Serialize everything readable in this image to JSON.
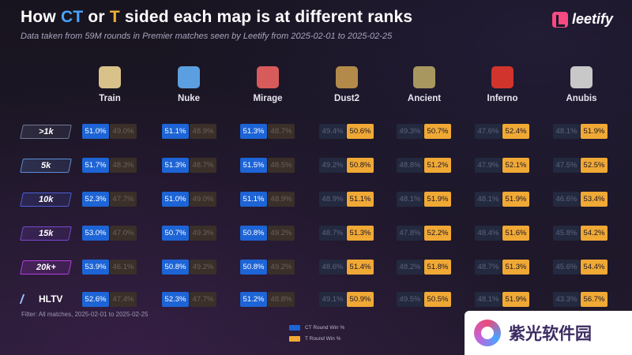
{
  "header": {
    "title_pre": "How ",
    "title_ct": "CT",
    "title_mid": " or ",
    "title_t": "T",
    "title_post": " sided each map is at different ranks",
    "subtitle": "Data taken from 59M rounds in Premier matches seen by Leetify from 2025-02-01 to 2025-02-25",
    "brand": "leetify"
  },
  "filter_text": "Filter: All matches, 2025-02-01 to 2025-02-25",
  "legend": {
    "ct_label": "CT Round Win %",
    "t_label": "T Round Win %"
  },
  "colors": {
    "ct": "#1d64d6",
    "t": "#f0a935"
  },
  "watermark": "紫光软件园",
  "chart_data": {
    "type": "table",
    "title": "How CT or T sided each map is at different ranks",
    "maps": [
      "Train",
      "Nuke",
      "Mirage",
      "Dust2",
      "Ancient",
      "Inferno",
      "Anubis"
    ],
    "ranks": [
      ">1k",
      "5k",
      "10k",
      "15k",
      "20k+",
      "HLTV"
    ],
    "rank_colors": [
      "#6e7a96",
      "#5a8fd8",
      "#4b5fd8",
      "#7a48cf",
      "#b33ee0",
      "#ffffff"
    ],
    "rows": [
      {
        "rank": ">1k",
        "ct": [
          "51.0%",
          "51.1%",
          "51.3%",
          "49.4%",
          "49.3%",
          "47.6%",
          "48.1%"
        ],
        "t": [
          "49.0%",
          "48.9%",
          "48.7%",
          "50.6%",
          "50.7%",
          "52.4%",
          "51.9%"
        ]
      },
      {
        "rank": "5k",
        "ct": [
          "51.7%",
          "51.3%",
          "51.5%",
          "49.2%",
          "48.8%",
          "47.9%",
          "47.5%"
        ],
        "t": [
          "48.3%",
          "48.7%",
          "48.5%",
          "50.8%",
          "51.2%",
          "52.1%",
          "52.5%"
        ]
      },
      {
        "rank": "10k",
        "ct": [
          "52.3%",
          "51.0%",
          "51.1%",
          "48.9%",
          "48.1%",
          "48.1%",
          "46.6%"
        ],
        "t": [
          "47.7%",
          "49.0%",
          "48.9%",
          "51.1%",
          "51.9%",
          "51.9%",
          "53.4%"
        ]
      },
      {
        "rank": "15k",
        "ct": [
          "53.0%",
          "50.7%",
          "50.8%",
          "48.7%",
          "47.8%",
          "48.4%",
          "45.8%"
        ],
        "t": [
          "47.0%",
          "49.3%",
          "49.2%",
          "51.3%",
          "52.2%",
          "51.6%",
          "54.2%"
        ]
      },
      {
        "rank": "20k+",
        "ct": [
          "53.9%",
          "50.8%",
          "50.8%",
          "48.6%",
          "48.2%",
          "48.7%",
          "45.6%"
        ],
        "t": [
          "46.1%",
          "49.2%",
          "49.2%",
          "51.4%",
          "51.8%",
          "51.3%",
          "54.4%"
        ]
      },
      {
        "rank": "HLTV",
        "ct": [
          "52.6%",
          "52.3%",
          "51.2%",
          "49.1%",
          "49.5%",
          "48.1%",
          "43.3%"
        ],
        "t": [
          "47.4%",
          "47.7%",
          "48.8%",
          "50.9%",
          "50.5%",
          "51.9%",
          "56.7%"
        ]
      }
    ],
    "map_icon_colors": [
      "#d8c28a",
      "#5b9fe0",
      "#d85b5b",
      "#b38a4a",
      "#a8985f",
      "#d0342c",
      "#c8c8c8"
    ]
  }
}
